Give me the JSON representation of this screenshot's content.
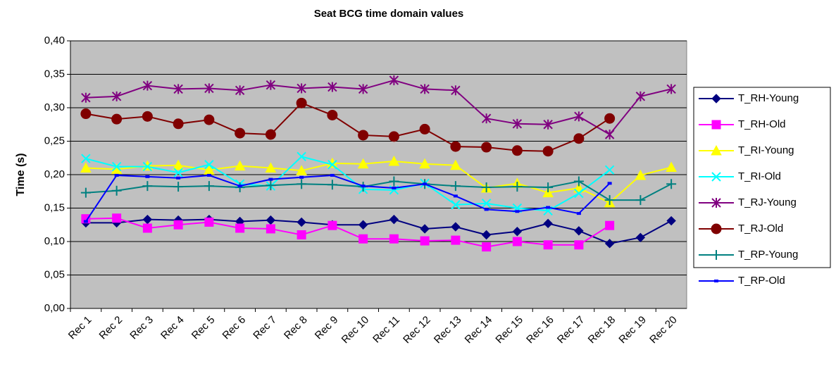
{
  "chart_data": {
    "type": "line",
    "title": "Seat BCG time domain values",
    "y_label": "Time (s)",
    "categories": [
      "Rec 1",
      "Rec 2",
      "Rec 3",
      "Rec 4",
      "Rec 5",
      "Rec 6",
      "Rec 7",
      "Rec 8",
      "Rec 9",
      "Rec 10",
      "Rec 11",
      "Rec 12",
      "Rec 13",
      "Rec 14",
      "Rec 15",
      "Rec 16",
      "Rec 17",
      "Rec 18",
      "Rec 19",
      "Rec 20"
    ],
    "ylim": [
      0,
      0.4
    ],
    "yticks": [
      {
        "value": 0,
        "label": "0,00"
      },
      {
        "value": 0.05,
        "label": "0,05"
      },
      {
        "value": 0.1,
        "label": "0,10"
      },
      {
        "value": 0.15,
        "label": "0,15"
      },
      {
        "value": 0.2,
        "label": "0,20"
      },
      {
        "value": 0.25,
        "label": "0,25"
      },
      {
        "value": 0.3,
        "label": "0,30"
      },
      {
        "value": 0.35,
        "label": "0,35"
      },
      {
        "value": 0.4,
        "label": "0,40"
      }
    ],
    "grid": true,
    "legend": "right",
    "series": [
      {
        "name": "T_RH-Young",
        "color": "#000080",
        "marker": "diamond",
        "values": [
          0.128,
          0.128,
          0.133,
          0.132,
          0.133,
          0.13,
          0.132,
          0.129,
          0.125,
          0.125,
          0.133,
          0.119,
          0.122,
          0.11,
          0.115,
          0.127,
          0.116,
          0.097,
          0.106,
          0.131
        ]
      },
      {
        "name": "T_RH-Old",
        "color": "#ff00ff",
        "marker": "square",
        "values": [
          0.134,
          0.135,
          0.12,
          0.125,
          0.129,
          0.12,
          0.119,
          0.11,
          0.124,
          0.104,
          0.104,
          0.101,
          0.102,
          0.092,
          0.1,
          0.095,
          0.095,
          0.124,
          null,
          null
        ]
      },
      {
        "name": "T_RI-Young",
        "color": "#ffff00",
        "marker": "triangle",
        "values": [
          0.21,
          0.208,
          0.213,
          0.214,
          0.207,
          0.213,
          0.21,
          0.206,
          0.217,
          0.216,
          0.22,
          0.216,
          0.214,
          0.18,
          0.187,
          0.173,
          0.18,
          0.158,
          0.199,
          0.211
        ]
      },
      {
        "name": "T_RI-Old",
        "color": "#00ffff",
        "marker": "x",
        "values": [
          0.224,
          0.212,
          0.212,
          0.203,
          0.215,
          0.186,
          0.183,
          0.227,
          0.215,
          0.178,
          0.177,
          0.187,
          0.155,
          0.157,
          0.15,
          0.146,
          0.172,
          0.207,
          null,
          null
        ]
      },
      {
        "name": "T_RJ-Young",
        "color": "#800080",
        "marker": "star",
        "values": [
          0.315,
          0.317,
          0.333,
          0.328,
          0.329,
          0.326,
          0.334,
          0.329,
          0.331,
          0.328,
          0.341,
          0.328,
          0.326,
          0.284,
          0.276,
          0.275,
          0.287,
          0.26,
          0.317,
          0.328
        ]
      },
      {
        "name": "T_RJ-Old",
        "color": "#800000",
        "marker": "circle",
        "values": [
          0.291,
          0.283,
          0.287,
          0.276,
          0.282,
          0.262,
          0.26,
          0.307,
          0.289,
          0.259,
          0.257,
          0.268,
          0.242,
          0.241,
          0.236,
          0.235,
          0.254,
          0.284,
          null,
          null
        ]
      },
      {
        "name": "T_RP-Young",
        "color": "#008080",
        "marker": "plus",
        "values": [
          0.173,
          0.176,
          0.183,
          0.182,
          0.183,
          0.181,
          0.184,
          0.186,
          0.185,
          0.182,
          0.19,
          0.186,
          0.183,
          0.181,
          0.182,
          0.181,
          0.19,
          0.162,
          0.162,
          0.186
        ]
      },
      {
        "name": "T_RP-Old",
        "color": "#0000ff",
        "marker": "dash",
        "values": [
          0.13,
          0.199,
          0.197,
          0.195,
          0.199,
          0.183,
          0.193,
          0.196,
          0.199,
          0.183,
          0.18,
          0.186,
          0.168,
          0.148,
          0.145,
          0.151,
          0.142,
          0.187,
          null,
          null
        ]
      }
    ]
  }
}
